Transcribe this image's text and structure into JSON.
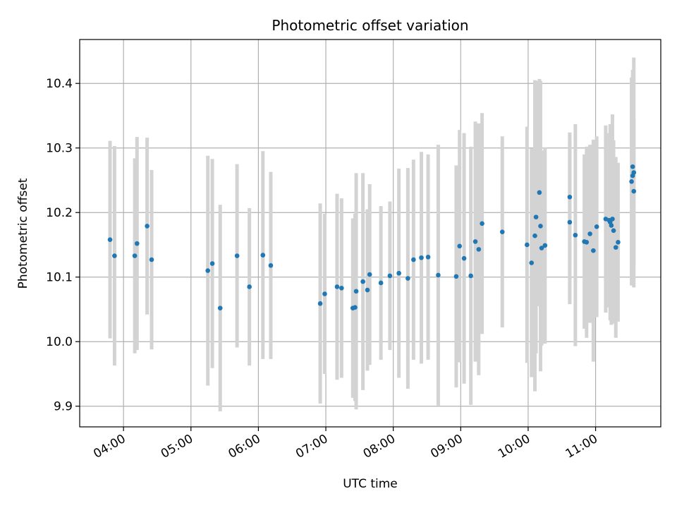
{
  "chart_data": {
    "type": "scatter",
    "title": "Photometric offset variation",
    "xlabel": "UTC time",
    "ylabel": "Photometric offset",
    "x_tick_labels": [
      "04:00",
      "05:00",
      "06:00",
      "07:00",
      "08:00",
      "09:00",
      "10:00",
      "11:00"
    ],
    "y_tick_labels": [
      "9.9",
      "10.0",
      "10.1",
      "10.2",
      "10.3",
      "10.4"
    ],
    "y_ticks": [
      9.9,
      10.0,
      10.1,
      10.2,
      10.3,
      10.4
    ],
    "xlim": [
      "03:21",
      "11:58"
    ],
    "ylim": [
      9.868,
      10.468
    ],
    "grid": true,
    "colors": {
      "points": "#1f77b4",
      "errorbars": "#d3d3d3",
      "grid": "#b0b0b0"
    },
    "x": [
      "03:48",
      "03:52",
      "04:10",
      "04:12",
      "04:21",
      "04:25",
      "05:15",
      "05:19",
      "05:26",
      "05:41",
      "05:52",
      "06:04",
      "06:11",
      "06:55",
      "06:59",
      "07:10",
      "07:14",
      "07:24",
      "07:26",
      "07:27",
      "07:33",
      "07:37",
      "07:39",
      "07:49",
      "07:57",
      "08:05",
      "08:13",
      "08:18",
      "08:25",
      "08:31",
      "08:40",
      "08:56",
      "08:59",
      "09:03",
      "09:09",
      "09:13",
      "09:16",
      "09:19",
      "09:37",
      "09:59",
      "10:03",
      "10:06",
      "10:07",
      "10:10",
      "10:11",
      "10:12",
      "10:15",
      "10:37",
      "10:37",
      "10:42",
      "10:50",
      "10:52",
      "10:55",
      "10:58",
      "11:01",
      "11:09",
      "11:12",
      "11:13",
      "11:14",
      "11:15",
      "11:16",
      "11:18",
      "11:20",
      "11:32",
      "11:33",
      "11:33",
      "11:34",
      "11:34"
    ],
    "y": [
      10.158,
      10.133,
      10.133,
      10.152,
      10.179,
      10.127,
      10.11,
      10.121,
      10.052,
      10.133,
      10.085,
      10.134,
      10.118,
      10.059,
      10.074,
      10.085,
      10.083,
      10.052,
      10.053,
      10.078,
      10.093,
      10.08,
      10.104,
      10.091,
      10.102,
      10.106,
      10.098,
      10.127,
      10.13,
      10.131,
      10.103,
      10.101,
      10.148,
      10.129,
      10.102,
      10.155,
      10.143,
      10.183,
      10.17,
      10.15,
      10.122,
      10.164,
      10.193,
      10.231,
      10.179,
      10.145,
      10.149,
      10.224,
      10.185,
      10.165,
      10.155,
      10.154,
      10.167,
      10.141,
      10.178,
      10.19,
      10.188,
      10.185,
      10.18,
      10.19,
      10.172,
      10.146,
      10.154,
      10.248,
      10.271,
      10.257,
      10.262,
      10.233
    ],
    "yerr": [
      0.153,
      0.17,
      0.151,
      0.165,
      0.137,
      0.139,
      0.178,
      0.162,
      0.16,
      0.142,
      0.122,
      0.161,
      0.145,
      0.155,
      0.124,
      0.144,
      0.139,
      0.139,
      0.145,
      0.183,
      0.168,
      0.125,
      0.14,
      0.119,
      0.115,
      0.162,
      0.171,
      0.155,
      0.164,
      0.159,
      0.202,
      0.172,
      0.18,
      0.194,
      0.2,
      0.186,
      0.195,
      0.171,
      0.148,
      0.183,
      0.177,
      0.241,
      0.211,
      0.176,
      0.225,
      0.151,
      0.152,
      0.1,
      0.127,
      0.172,
      0.135,
      0.148,
      0.138,
      0.172,
      0.14,
      0.145,
      0.135,
      0.152,
      0.154,
      0.162,
      0.14,
      0.14,
      0.123,
      0.161,
      0.139,
      0.164,
      0.178,
      0.113
    ]
  }
}
